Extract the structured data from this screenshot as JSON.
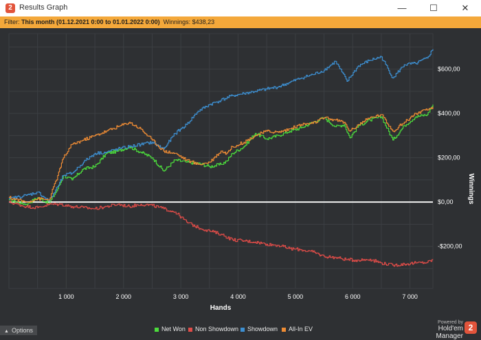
{
  "window": {
    "title": "Results Graph",
    "app_icon_glyph": "2",
    "minimize_glyph": "—",
    "maximize_glyph": "☐",
    "close_glyph": "✕"
  },
  "filter": {
    "prefix": "Filter: ",
    "value": "This month (01.12.2021 0:00 to 01.01.2022 0:00)",
    "winnings": "  Winnings: $438,23"
  },
  "footer": {
    "options_label": "Options",
    "powered_by": "Powered by",
    "brand": "Hold'em Manager",
    "logo_glyph": "2"
  },
  "colors": {
    "background": "#2e3033",
    "grid": "#45484c",
    "zero_line": "#ffffff",
    "filter_bar": "#f4a83a",
    "brand": "#e2543b"
  },
  "chart_data": {
    "type": "line",
    "xlabel": "Hands",
    "ylabel": "Winnings",
    "xlim": [
      0,
      7400
    ],
    "ylim": [
      -390,
      760
    ],
    "x_ticks": [
      1000,
      2000,
      3000,
      4000,
      5000,
      6000,
      7000
    ],
    "x_tick_labels": [
      "1 000",
      "2 000",
      "3 000",
      "4 000",
      "5 000",
      "6 000",
      "7 000"
    ],
    "y_ticks": [
      -200,
      0,
      200,
      400,
      600
    ],
    "y_tick_labels": [
      "-$200,00",
      "$0,00",
      "$200,00",
      "$400,00",
      "$600,00"
    ],
    "legend_position": "bottom",
    "series": [
      {
        "name": "Net Won",
        "color": "#4cdc3c",
        "x": [
          0,
          300,
          500,
          700,
          850,
          950,
          1100,
          1300,
          1500,
          1700,
          1900,
          2100,
          2300,
          2500,
          2700,
          2900,
          3100,
          3300,
          3500,
          3700,
          3800,
          3900,
          4100,
          4300,
          4500,
          4700,
          4900,
          5100,
          5300,
          5500,
          5700,
          5850,
          5950,
          6100,
          6300,
          6500,
          6700,
          6900,
          7100,
          7300,
          7400
        ],
        "y": [
          10,
          -10,
          20,
          -5,
          60,
          120,
          100,
          150,
          160,
          220,
          230,
          250,
          225,
          200,
          140,
          190,
          180,
          175,
          160,
          170,
          185,
          220,
          250,
          310,
          285,
          300,
          320,
          335,
          360,
          380,
          340,
          350,
          290,
          345,
          370,
          385,
          280,
          345,
          385,
          395,
          440
        ]
      },
      {
        "name": "Non Showdown",
        "color": "#e04c48",
        "x": [
          0,
          300,
          500,
          700,
          900,
          1100,
          1300,
          1500,
          1700,
          1900,
          2100,
          2300,
          2500,
          2700,
          2900,
          3100,
          3300,
          3500,
          3700,
          3900,
          4100,
          4300,
          4500,
          4700,
          4900,
          5100,
          5300,
          5500,
          5700,
          5900,
          6100,
          6300,
          6500,
          6700,
          6900,
          7100,
          7300,
          7400
        ],
        "y": [
          0,
          -20,
          -25,
          -10,
          -10,
          -20,
          -25,
          -30,
          -20,
          -10,
          -20,
          -10,
          -15,
          -30,
          -45,
          -90,
          -115,
          -130,
          -145,
          -170,
          -175,
          -180,
          -190,
          -195,
          -210,
          -215,
          -225,
          -245,
          -250,
          -260,
          -262,
          -258,
          -275,
          -285,
          -280,
          -275,
          -272,
          -260
        ]
      },
      {
        "name": "Showdown",
        "color": "#3d8fd1",
        "x": [
          0,
          300,
          500,
          700,
          850,
          950,
          1100,
          1300,
          1500,
          1700,
          1900,
          2100,
          2300,
          2500,
          2700,
          2900,
          3100,
          3300,
          3500,
          3700,
          3900,
          4100,
          4300,
          4500,
          4700,
          4900,
          5100,
          5300,
          5500,
          5700,
          5900,
          6100,
          6300,
          6500,
          6700,
          6900,
          7100,
          7300,
          7400
        ],
        "y": [
          15,
          30,
          45,
          5,
          70,
          120,
          130,
          180,
          220,
          225,
          240,
          250,
          260,
          270,
          240,
          310,
          350,
          410,
          440,
          460,
          480,
          490,
          500,
          510,
          520,
          540,
          560,
          575,
          595,
          635,
          545,
          615,
          640,
          655,
          560,
          620,
          625,
          650,
          690
        ]
      },
      {
        "name": "All-In EV",
        "color": "#ef8c34",
        "x": [
          0,
          300,
          500,
          700,
          850,
          950,
          1100,
          1300,
          1500,
          1700,
          1900,
          2100,
          2300,
          2500,
          2700,
          2900,
          3100,
          3300,
          3500,
          3700,
          3800,
          3900,
          4100,
          4300,
          4500,
          4700,
          4900,
          5100,
          5300,
          5500,
          5700,
          5850,
          5950,
          6100,
          6300,
          6500,
          6700,
          6900,
          7100,
          7300,
          7400
        ],
        "y": [
          20,
          0,
          15,
          10,
          120,
          200,
          260,
          280,
          300,
          320,
          340,
          360,
          330,
          280,
          230,
          220,
          190,
          170,
          180,
          230,
          220,
          250,
          270,
          300,
          320,
          315,
          330,
          350,
          355,
          380,
          370,
          360,
          320,
          350,
          380,
          395,
          320,
          360,
          400,
          415,
          430
        ]
      }
    ]
  }
}
